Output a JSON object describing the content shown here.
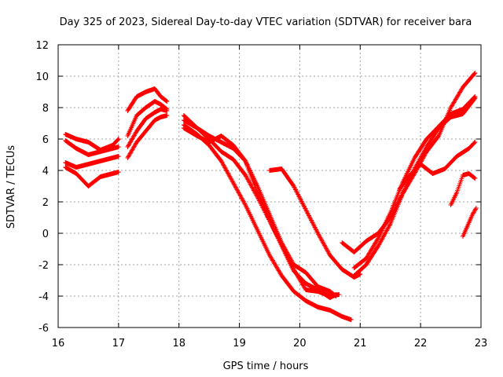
{
  "chart_data": {
    "type": "scatter",
    "title": "Day 325 of 2023, Sidereal Day-to-day VTEC variation (SDTVAR) for receiver bara",
    "xlabel": "GPS time / hours",
    "ylabel": "SDTVAR / TECUs",
    "xlim": [
      16,
      23
    ],
    "ylim": [
      -6,
      12
    ],
    "x_ticks": [
      16,
      17,
      18,
      19,
      20,
      21,
      22,
      23
    ],
    "y_ticks": [
      -6,
      -4,
      -2,
      0,
      2,
      4,
      6,
      8,
      10,
      12
    ],
    "x_tick_labels": [
      "16",
      "17",
      "18",
      "19",
      "20",
      "21",
      "22",
      "23"
    ],
    "y_tick_labels": [
      "-6",
      "-4",
      "-2",
      "0",
      "2",
      "4",
      "6",
      "8",
      "10",
      "12"
    ],
    "grid": true,
    "marker": "+",
    "colors": {
      "series": "#ff0000",
      "axis": "#000000",
      "grid": "#a0a0a0"
    },
    "series": [
      {
        "name": "s1",
        "x": [
          16.12,
          16.3,
          16.5,
          16.7,
          16.9,
          17.0
        ],
        "y": [
          6.3,
          6.0,
          5.8,
          5.3,
          5.6,
          6.0
        ]
      },
      {
        "name": "s2",
        "x": [
          16.12,
          16.3,
          16.5,
          16.7,
          16.9,
          17.0
        ],
        "y": [
          5.9,
          5.4,
          5.0,
          5.2,
          5.4,
          5.5
        ]
      },
      {
        "name": "s3",
        "x": [
          16.12,
          16.3,
          16.5,
          16.7,
          16.9,
          17.0
        ],
        "y": [
          4.5,
          4.2,
          4.4,
          4.6,
          4.8,
          4.9
        ]
      },
      {
        "name": "s4",
        "x": [
          16.12,
          16.3,
          16.5,
          16.7,
          16.9,
          17.0
        ],
        "y": [
          4.2,
          3.8,
          3.0,
          3.6,
          3.8,
          3.9
        ]
      },
      {
        "name": "s5",
        "x": [
          17.15,
          17.3,
          17.45,
          17.6,
          17.7,
          17.8
        ],
        "y": [
          7.8,
          8.7,
          9.0,
          9.2,
          8.7,
          8.4
        ]
      },
      {
        "name": "s6",
        "x": [
          17.15,
          17.3,
          17.45,
          17.6,
          17.7,
          17.8
        ],
        "y": [
          6.2,
          7.5,
          8.0,
          8.4,
          8.2,
          7.9
        ]
      },
      {
        "name": "s7",
        "x": [
          17.15,
          17.3,
          17.45,
          17.6,
          17.7,
          17.8
        ],
        "y": [
          5.5,
          6.5,
          7.3,
          7.7,
          7.9,
          7.8
        ]
      },
      {
        "name": "s8",
        "x": [
          17.15,
          17.3,
          17.45,
          17.6,
          17.7,
          17.8
        ],
        "y": [
          4.8,
          5.8,
          6.5,
          7.2,
          7.4,
          7.5
        ]
      },
      {
        "name": "s9",
        "x": [
          18.08,
          18.3,
          18.5,
          18.7,
          18.9,
          19.1,
          19.3,
          19.5,
          19.7,
          19.9,
          20.1,
          20.3,
          20.5,
          20.6
        ],
        "y": [
          7.5,
          6.7,
          6.2,
          5.8,
          5.4,
          4.6,
          3.0,
          1.2,
          -0.6,
          -2.0,
          -2.5,
          -3.4,
          -3.7,
          -4.0
        ]
      },
      {
        "name": "s10",
        "x": [
          18.08,
          18.3,
          18.5,
          18.7,
          18.9,
          19.1,
          19.3,
          19.5,
          19.7,
          19.9,
          20.1,
          20.3,
          20.5,
          20.65
        ],
        "y": [
          6.7,
          6.2,
          5.8,
          6.2,
          5.6,
          4.6,
          2.6,
          0.8,
          -0.7,
          -2.3,
          -3.6,
          -3.7,
          -4.0,
          -3.9
        ]
      },
      {
        "name": "s11",
        "x": [
          18.08,
          18.3,
          18.5,
          18.7,
          18.9,
          19.1,
          19.3,
          19.5,
          19.7,
          19.9,
          20.1,
          20.3,
          20.5,
          20.6
        ],
        "y": [
          7.2,
          6.7,
          6.0,
          5.2,
          4.7,
          3.7,
          2.3,
          0.8,
          -0.8,
          -2.4,
          -3.2,
          -3.6,
          -4.1,
          -3.9
        ]
      },
      {
        "name": "s12",
        "x": [
          18.08,
          18.3,
          18.5,
          18.7,
          18.9,
          19.1,
          19.3,
          19.5,
          19.7,
          19.9,
          20.1,
          20.3,
          20.5,
          20.7,
          20.85
        ],
        "y": [
          6.9,
          6.3,
          5.6,
          4.6,
          3.2,
          1.8,
          0.2,
          -1.4,
          -2.7,
          -3.7,
          -4.3,
          -4.7,
          -4.9,
          -5.3,
          -5.5
        ]
      },
      {
        "name": "s13",
        "x": [
          19.5,
          19.7,
          19.9,
          20.1,
          20.3,
          20.5,
          20.7,
          20.9,
          21.0
        ],
        "y": [
          4.0,
          4.1,
          3.0,
          1.5,
          0.0,
          -1.4,
          -2.3,
          -2.8,
          -2.6
        ]
      },
      {
        "name": "s14",
        "x": [
          20.7,
          20.9,
          21.1,
          21.3,
          21.5,
          21.7,
          21.9,
          22.1,
          22.3,
          22.5,
          22.7,
          22.9
        ],
        "y": [
          -0.6,
          -1.2,
          -0.5,
          0.0,
          1.0,
          2.5,
          3.8,
          5.2,
          6.2,
          8.0,
          9.3,
          10.2
        ]
      },
      {
        "name": "s15",
        "x": [
          20.9,
          21.1,
          21.3,
          21.5,
          21.7,
          21.9,
          22.1,
          22.3,
          22.5,
          22.7,
          22.9
        ],
        "y": [
          -2.2,
          -1.6,
          -0.3,
          1.3,
          3.2,
          4.8,
          6.0,
          6.8,
          7.6,
          7.9,
          8.7
        ]
      },
      {
        "name": "s16",
        "x": [
          20.9,
          21.1,
          21.3,
          21.5,
          21.7,
          21.9,
          22.1,
          22.3,
          22.5,
          22.7,
          22.9
        ],
        "y": [
          -2.7,
          -2.0,
          -0.8,
          0.6,
          2.5,
          4.1,
          5.5,
          6.7,
          7.4,
          7.6,
          8.6
        ]
      },
      {
        "name": "s17",
        "x": [
          21.65,
          21.8,
          22.0,
          22.2,
          22.4,
          22.6,
          22.8,
          22.9
        ],
        "y": [
          2.8,
          3.6,
          4.4,
          3.8,
          4.1,
          4.9,
          5.4,
          5.8
        ]
      },
      {
        "name": "s18",
        "x": [
          22.5,
          22.6,
          22.7,
          22.8,
          22.9
        ],
        "y": [
          1.8,
          2.6,
          3.7,
          3.8,
          3.5
        ]
      },
      {
        "name": "s19",
        "x": [
          22.7,
          22.78,
          22.86,
          22.92
        ],
        "y": [
          -0.2,
          0.5,
          1.2,
          1.6
        ]
      }
    ]
  }
}
